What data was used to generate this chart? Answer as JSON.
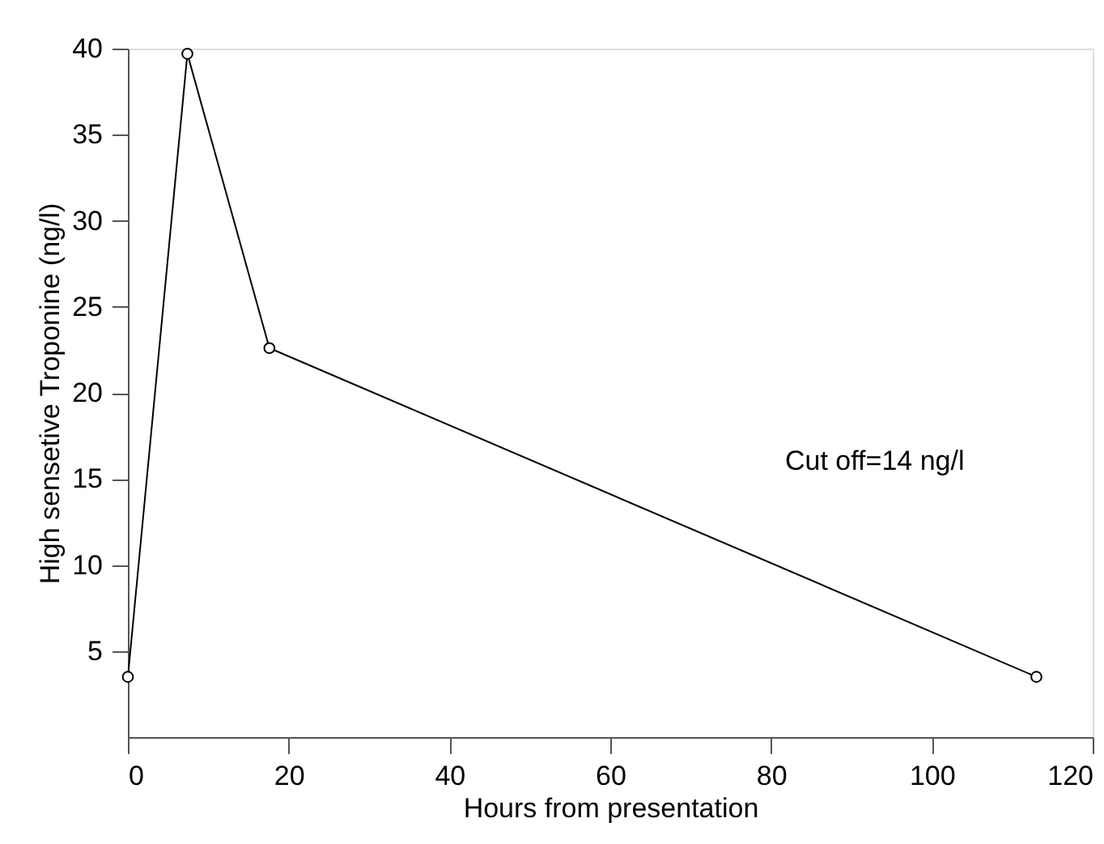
{
  "chart_data": {
    "type": "line",
    "xlabel": "Hours from presentation",
    "ylabel": "High sensetive Troponine (ng/l)",
    "x": [
      0,
      7.4,
      17.6,
      113
    ],
    "series": [
      {
        "color": "#000000",
        "values": [
          3.5,
          39.7,
          22.6,
          3.5
        ]
      }
    ],
    "xlim": [
      0,
      120
    ],
    "xticks": [
      0,
      20,
      40,
      60,
      80,
      100,
      120
    ],
    "ylim": [
      0,
      40
    ],
    "yticks": [
      5,
      10,
      15,
      20,
      25,
      30,
      35,
      40
    ],
    "marker": "circle",
    "line_style": "solid",
    "grid": false,
    "legend": false,
    "annotations": [
      "Cut off=14 ng/l"
    ]
  }
}
